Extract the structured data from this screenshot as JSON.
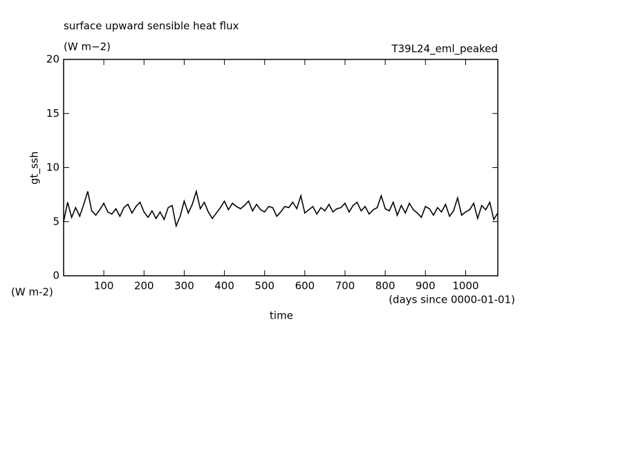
{
  "chart_data": {
    "type": "line",
    "title": "surface upward sensible heat flux",
    "subtitle": "(W m−2)",
    "run_label": "T39L24_eml_peaked",
    "y_label": "gt_ssh",
    "y_unit": "(W m-2)",
    "x_label": "time",
    "x_unit": "(days since 0000-01-01)",
    "color": "#000000",
    "xlim": [
      0,
      1080
    ],
    "xticks": [
      100,
      200,
      300,
      400,
      500,
      600,
      700,
      800,
      900,
      1000
    ],
    "ylim": [
      0,
      20
    ],
    "yticks": [
      0,
      5,
      10,
      15,
      20
    ],
    "x": [
      0,
      10,
      20,
      30,
      40,
      50,
      60,
      70,
      80,
      90,
      100,
      110,
      120,
      130,
      140,
      150,
      160,
      170,
      180,
      190,
      200,
      210,
      220,
      230,
      240,
      250,
      260,
      270,
      280,
      290,
      300,
      310,
      320,
      330,
      340,
      350,
      360,
      370,
      380,
      390,
      400,
      410,
      420,
      430,
      440,
      450,
      460,
      470,
      480,
      490,
      500,
      510,
      520,
      530,
      540,
      550,
      560,
      570,
      580,
      590,
      600,
      610,
      620,
      630,
      640,
      650,
      660,
      670,
      680,
      690,
      700,
      710,
      720,
      730,
      740,
      750,
      760,
      770,
      780,
      790,
      800,
      810,
      820,
      830,
      840,
      850,
      860,
      870,
      880,
      890,
      900,
      910,
      920,
      930,
      940,
      950,
      960,
      970,
      980,
      990,
      1000,
      1010,
      1020,
      1030,
      1040,
      1050,
      1060,
      1070,
      1080
    ],
    "values": [
      5.0,
      6.8,
      5.4,
      6.3,
      5.5,
      6.6,
      7.8,
      6.0,
      5.6,
      6.1,
      6.7,
      5.9,
      5.7,
      6.2,
      5.5,
      6.3,
      6.6,
      5.8,
      6.4,
      6.8,
      5.9,
      5.4,
      6.0,
      5.3,
      5.9,
      5.2,
      6.3,
      6.5,
      4.6,
      5.5,
      6.9,
      5.8,
      6.6,
      7.8,
      6.2,
      6.8,
      5.9,
      5.3,
      5.8,
      6.3,
      6.9,
      6.1,
      6.7,
      6.4,
      6.2,
      6.5,
      6.9,
      6.0,
      6.6,
      6.1,
      5.9,
      6.4,
      6.3,
      5.5,
      5.9,
      6.4,
      6.3,
      6.8,
      6.2,
      7.4,
      5.8,
      6.1,
      6.4,
      5.7,
      6.3,
      6.0,
      6.6,
      5.9,
      6.2,
      6.3,
      6.7,
      5.9,
      6.5,
      6.8,
      6.0,
      6.4,
      5.7,
      6.1,
      6.3,
      7.4,
      6.2,
      6.0,
      6.8,
      5.6,
      6.5,
      5.8,
      6.7,
      6.1,
      5.8,
      5.4,
      6.4,
      6.2,
      5.6,
      6.3,
      5.9,
      6.6,
      5.5,
      6.0,
      7.2,
      5.6,
      5.9,
      6.1,
      6.7,
      5.3,
      6.5,
      6.1,
      6.8,
      5.2,
      5.8
    ]
  }
}
